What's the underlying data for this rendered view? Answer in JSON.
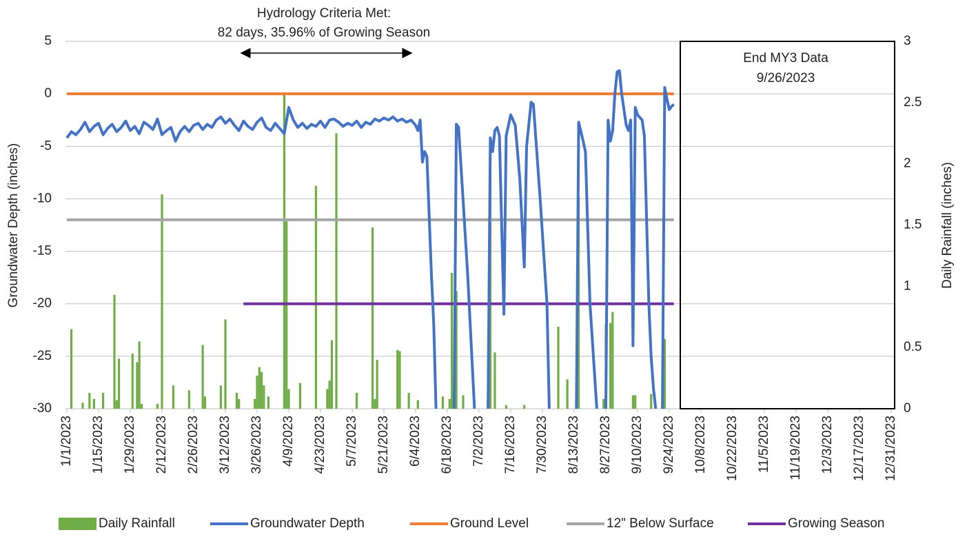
{
  "chart_data": {
    "type": "combo",
    "annotations": [
      "Hydrology Criteria Met:",
      "82 days, 35.96% of Growing Season"
    ],
    "box_text": [
      "End MY3 Data",
      "9/26/2023"
    ],
    "ylabel": "Groundwater Depth (inches)",
    "y2label": "Daily Rainfall (inches)",
    "xlim": [
      0,
      364
    ],
    "xticks": [
      {
        "value": 0,
        "label": "1/1/2023"
      },
      {
        "value": 14,
        "label": "1/15/2023"
      },
      {
        "value": 28,
        "label": "1/29/2023"
      },
      {
        "value": 42,
        "label": "2/12/2023"
      },
      {
        "value": 56,
        "label": "2/26/2023"
      },
      {
        "value": 70,
        "label": "3/12/2023"
      },
      {
        "value": 84,
        "label": "3/26/2023"
      },
      {
        "value": 98,
        "label": "4/9/2023"
      },
      {
        "value": 112,
        "label": "4/23/2023"
      },
      {
        "value": 126,
        "label": "5/7/2023"
      },
      {
        "value": 140,
        "label": "5/21/2023"
      },
      {
        "value": 154,
        "label": "6/4/2023"
      },
      {
        "value": 168,
        "label": "6/18/2023"
      },
      {
        "value": 182,
        "label": "7/2/2023"
      },
      {
        "value": 196,
        "label": "7/16/2023"
      },
      {
        "value": 210,
        "label": "7/30/2023"
      },
      {
        "value": 224,
        "label": "8/13/2023"
      },
      {
        "value": 238,
        "label": "8/27/2023"
      },
      {
        "value": 252,
        "label": "9/10/2023"
      },
      {
        "value": 266,
        "label": "9/24/2023"
      },
      {
        "value": 280,
        "label": "10/8/2023"
      },
      {
        "value": 294,
        "label": "10/22/2023"
      },
      {
        "value": 308,
        "label": "11/5/2023"
      },
      {
        "value": 322,
        "label": "11/19/2023"
      },
      {
        "value": 336,
        "label": "12/3/2023"
      },
      {
        "value": 350,
        "label": "12/17/2023"
      },
      {
        "value": 364,
        "label": "12/31/2023"
      }
    ],
    "ylim": [
      -30,
      5
    ],
    "yticks": [
      -30,
      -25,
      -20,
      -15,
      -10,
      -5,
      0,
      5
    ],
    "y2lim": [
      0,
      3
    ],
    "y2ticks": [
      0,
      0.5,
      1,
      1.5,
      2,
      2.5,
      3
    ],
    "grid": true,
    "legend": "bottom",
    "series": [
      {
        "name": "Daily Rainfall",
        "type": "bar",
        "axis": "y2",
        "color": "#70ad47",
        "x": [
          2,
          7,
          10,
          12,
          16,
          21,
          22,
          23,
          29,
          31,
          32,
          33,
          40,
          42,
          47,
          54,
          60,
          61,
          68,
          70,
          75,
          76,
          83,
          84,
          85,
          86,
          87,
          89,
          96,
          97,
          98,
          103,
          110,
          115,
          116,
          117,
          119,
          128,
          135,
          136,
          137,
          146,
          147,
          151,
          155,
          166,
          169,
          170,
          171,
          172,
          175,
          187,
          189,
          194,
          202,
          217,
          221,
          226,
          237,
          238,
          240,
          241,
          250,
          251,
          258,
          264
        ],
        "values": [
          0.65,
          0.05,
          0.13,
          0.08,
          0.13,
          0.93,
          0.07,
          0.41,
          0.45,
          0.38,
          0.55,
          0.04,
          0.04,
          1.75,
          0.19,
          0.15,
          0.52,
          0.1,
          0.19,
          0.73,
          0.13,
          0.08,
          0.08,
          0.27,
          0.34,
          0.3,
          0.19,
          0.1,
          2.57,
          1.53,
          0.16,
          0.21,
          1.82,
          0.16,
          0.23,
          0.56,
          2.25,
          0.13,
          1.48,
          0.08,
          0.4,
          0.48,
          0.47,
          0.13,
          0.07,
          0.1,
          0.08,
          1.11,
          0.12,
          0.96,
          0.11,
          1.91,
          0.46,
          0.03,
          0.03,
          0.67,
          0.24,
          1.73,
          0.08,
          0.69,
          0.7,
          0.79,
          0.11,
          0.11,
          0.12,
          0.57
        ]
      },
      {
        "name": "Groundwater Depth",
        "type": "line",
        "color": "#4472c4",
        "x": [
          0,
          2,
          4,
          6,
          8,
          10,
          12,
          14,
          16,
          18,
          20,
          22,
          24,
          26,
          28,
          30,
          32,
          34,
          36,
          38,
          40,
          42,
          44,
          46,
          48,
          50,
          52,
          54,
          56,
          58,
          60,
          62,
          64,
          66,
          68,
          70,
          72,
          74,
          76,
          78,
          80,
          82,
          84,
          86,
          88,
          90,
          92,
          94,
          96,
          98,
          100,
          102,
          104,
          106,
          108,
          110,
          112,
          114,
          116,
          118,
          120,
          122,
          124,
          126,
          128,
          130,
          132,
          134,
          136,
          138,
          140,
          142,
          144,
          146,
          148,
          150,
          152,
          154,
          155,
          156,
          157,
          158,
          159,
          161,
          162,
          163,
          165,
          171,
          172,
          173,
          177,
          180,
          183,
          186,
          187,
          188,
          189,
          190,
          191,
          193,
          194,
          196,
          198,
          200,
          202,
          203,
          205,
          206,
          209,
          212,
          213,
          220,
          225,
          226,
          228,
          229,
          231,
          234,
          236,
          238,
          239,
          240,
          241,
          242,
          243,
          244,
          245,
          246,
          247,
          248,
          249,
          250,
          251,
          252,
          254,
          255,
          257,
          258,
          259,
          260,
          262,
          263,
          264,
          265,
          266,
          267,
          268
        ],
        "values": [
          -4.2,
          -3.6,
          -3.9,
          -3.4,
          -2.7,
          -3.6,
          -3.1,
          -2.8,
          -3.9,
          -3.3,
          -2.9,
          -3.6,
          -3.2,
          -2.6,
          -3.5,
          -3.1,
          -3.8,
          -2.7,
          -3.0,
          -3.4,
          -2.4,
          -3.9,
          -3.5,
          -3.2,
          -4.5,
          -3.6,
          -3.1,
          -3.6,
          -3.0,
          -2.8,
          -3.4,
          -2.9,
          -3.2,
          -2.5,
          -2.2,
          -2.8,
          -2.4,
          -3.0,
          -3.5,
          -2.6,
          -3.1,
          -3.4,
          -2.7,
          -2.3,
          -3.2,
          -3.5,
          -2.8,
          -3.3,
          -3.8,
          -1.3,
          -2.5,
          -3.2,
          -2.8,
          -3.3,
          -2.9,
          -3.1,
          -2.6,
          -3.2,
          -2.5,
          -2.4,
          -2.7,
          -3.1,
          -2.8,
          -3.0,
          -2.6,
          -3.2,
          -2.7,
          -2.9,
          -2.4,
          -2.6,
          -2.3,
          -2.5,
          -2.2,
          -2.6,
          -2.4,
          -2.7,
          -2.5,
          -3.0,
          -3.5,
          -2.5,
          -6.5,
          -5.5,
          -6.0,
          -17.3,
          -21.9,
          -30,
          null,
          -30,
          -2.9,
          -3.2,
          -17.3,
          -30,
          null,
          -30,
          -4.2,
          -5.5,
          -3.5,
          -3.2,
          -4,
          -21,
          -4,
          -2,
          -3,
          -8,
          -16.5,
          -5,
          -0.8,
          -1,
          -10,
          -20,
          -30,
          null,
          -30,
          -2.7,
          -4.5,
          -5.5,
          -20,
          -30,
          null,
          -30,
          -2.5,
          -4.5,
          -3.5,
          0,
          2.1,
          2.2,
          0,
          -1.5,
          -3,
          -3.5,
          -2.5,
          -24,
          -1.3,
          -2,
          -2.5,
          -4,
          -20,
          -25,
          -28,
          -30,
          null,
          -30,
          0.6,
          -0.5,
          -1.5,
          -1.2,
          -1
        ]
      },
      {
        "name": "Ground Level",
        "type": "line",
        "color": "#ed7d31",
        "x": [
          0,
          268
        ],
        "values": [
          0,
          0
        ]
      },
      {
        "name": "12\" Below Surface",
        "type": "line",
        "color": "#a5a5a5",
        "x": [
          0,
          268
        ],
        "values": [
          -12,
          -12
        ]
      },
      {
        "name": "Growing Season",
        "type": "line",
        "color": "#7030a0",
        "x": [
          78,
          268
        ],
        "values": [
          -20,
          -20
        ]
      }
    ]
  }
}
